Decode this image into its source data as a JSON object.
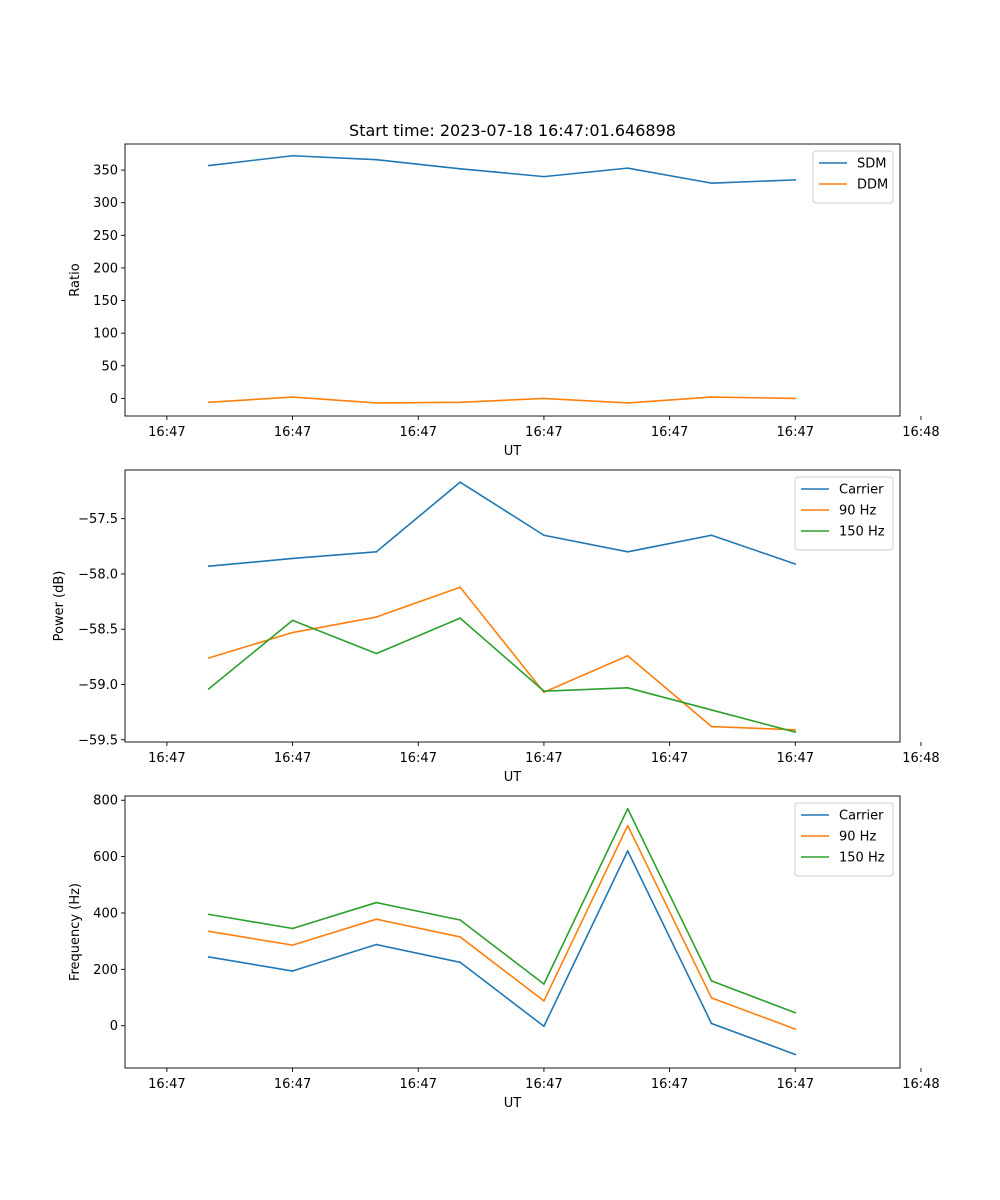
{
  "title": "Start time: 2023-07-18 16:47:01.646898",
  "colors": {
    "blue": "#1f77b4",
    "orange": "#ff7f0e",
    "green": "#2ca02c"
  },
  "chart_data": [
    {
      "type": "line",
      "title": "Start time: 2023-07-18 16:47:01.646898",
      "xlabel": "UT",
      "ylabel": "Ratio",
      "xlim": [
        -0.5,
        8.75
      ],
      "x": [
        0.5,
        1.5,
        2.5,
        3.5,
        4.5,
        5.5,
        6.5,
        7.5
      ],
      "xticks": [
        0,
        1.5,
        3,
        4.5,
        6,
        7.5,
        9
      ],
      "xtick_labels": [
        "16:47",
        "16:47",
        "16:47",
        "16:47",
        "16:47",
        "16:47",
        "16:48"
      ],
      "ylim": [
        -27,
        390
      ],
      "yticks": [
        0,
        50,
        100,
        150,
        200,
        250,
        300,
        350
      ],
      "ytick_labels": [
        "0",
        "50",
        "100",
        "150",
        "200",
        "250",
        "300",
        "350"
      ],
      "legend_position": "top-right",
      "series": [
        {
          "name": "SDM",
          "color": "#1f77b4",
          "values": [
            357,
            372,
            366,
            352,
            340,
            353,
            330,
            335
          ]
        },
        {
          "name": "DDM",
          "color": "#ff7f0e",
          "values": [
            -6,
            2,
            -7,
            -6,
            0,
            -7,
            2,
            0
          ]
        }
      ]
    },
    {
      "type": "line",
      "xlabel": "UT",
      "ylabel": "Power (dB)",
      "xlim": [
        -0.5,
        8.75
      ],
      "x": [
        0.5,
        1.5,
        2.5,
        3.5,
        4.5,
        5.5,
        6.5,
        7.5
      ],
      "xticks": [
        0,
        1.5,
        3,
        4.5,
        6,
        7.5,
        9
      ],
      "xtick_labels": [
        "16:47",
        "16:47",
        "16:47",
        "16:47",
        "16:47",
        "16:47",
        "16:48"
      ],
      "ylim": [
        -59.52,
        -57.06
      ],
      "yticks": [
        -59.5,
        -59.0,
        -58.5,
        -58.0,
        -57.5
      ],
      "ytick_labels": [
        "−59.5",
        "−59.0",
        "−58.5",
        "−58.0",
        "−57.5"
      ],
      "legend_position": "top-right",
      "series": [
        {
          "name": "Carrier",
          "color": "#1f77b4",
          "values": [
            -57.93,
            -57.86,
            -57.8,
            -57.17,
            -57.65,
            -57.8,
            -57.65,
            -57.91
          ]
        },
        {
          "name": "90 Hz",
          "color": "#ff7f0e",
          "values": [
            -58.76,
            -58.53,
            -58.39,
            -58.12,
            -59.07,
            -58.74,
            -59.38,
            -59.41
          ]
        },
        {
          "name": "150 Hz",
          "color": "#2ca02c",
          "values": [
            -59.04,
            -58.42,
            -58.72,
            -58.4,
            -59.06,
            -59.03,
            -59.23,
            -59.43
          ]
        }
      ]
    },
    {
      "type": "line",
      "xlabel": "UT",
      "ylabel": "Frequency (Hz)",
      "xlim": [
        -0.5,
        8.75
      ],
      "x": [
        0.5,
        1.5,
        2.5,
        3.5,
        4.5,
        5.5,
        6.5,
        7.5
      ],
      "xticks": [
        0,
        1.5,
        3,
        4.5,
        6,
        7.5,
        9
      ],
      "xtick_labels": [
        "16:47",
        "16:47",
        "16:47",
        "16:47",
        "16:47",
        "16:47",
        "16:48"
      ],
      "ylim": [
        -150,
        815
      ],
      "yticks": [
        0,
        200,
        400,
        600,
        800
      ],
      "ytick_labels": [
        "0",
        "200",
        "400",
        "600",
        "800"
      ],
      "legend_position": "top-right",
      "series": [
        {
          "name": "Carrier",
          "color": "#1f77b4",
          "values": [
            244,
            194,
            288,
            225,
            -2,
            620,
            8,
            -102
          ]
        },
        {
          "name": "90 Hz",
          "color": "#ff7f0e",
          "values": [
            335,
            286,
            378,
            315,
            88,
            710,
            99,
            -12
          ]
        },
        {
          "name": "150 Hz",
          "color": "#2ca02c",
          "values": [
            395,
            345,
            437,
            375,
            148,
            770,
            159,
            46
          ]
        }
      ]
    }
  ]
}
